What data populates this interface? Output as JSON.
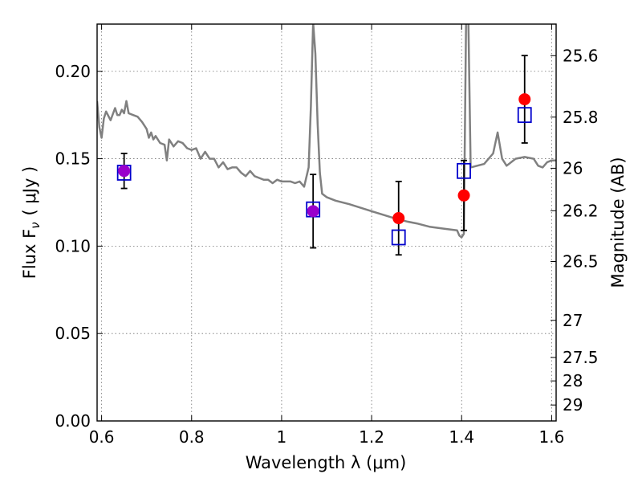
{
  "chart_data": {
    "type": "scatter",
    "xlabel": "Wavelength  λ (μm)",
    "ylabel": "Flux  F",
    "ylabel_sub": "ν",
    "ylabel_unit": "( μJy )",
    "y2label": "Magnitude (AB)",
    "xlim": [
      0.59,
      1.61
    ],
    "ylim": [
      0.0,
      0.227
    ],
    "x_ticks": [
      0.6,
      0.8,
      1.0,
      1.2,
      1.4,
      1.6
    ],
    "x_tick_labels": [
      "0.6",
      "0.8",
      "1",
      "1.2",
      "1.4",
      "1.6"
    ],
    "y_ticks": [
      0.0,
      0.05,
      0.1,
      0.15,
      0.2
    ],
    "y_tick_labels": [
      "0.00",
      "0.05",
      "0.10",
      "0.15",
      "0.20"
    ],
    "mag_ticks": [
      25.6,
      25.8,
      26,
      26.2,
      26.5,
      27,
      27.5,
      28,
      29
    ],
    "mag_tick_labels": [
      "25.6",
      "25.8",
      "26",
      "26.2",
      "26.5",
      "27",
      "27.5",
      "28",
      "29"
    ],
    "grid": true,
    "colors": {
      "observed": "#ff0000",
      "model": "#0000cc",
      "spectrum": "#808080",
      "overlap": "#9900cc"
    },
    "series": [
      {
        "kind": "spectrum",
        "x": [
          0.59,
          0.595,
          0.6,
          0.605,
          0.61,
          0.62,
          0.63,
          0.635,
          0.64,
          0.645,
          0.65,
          0.655,
          0.66,
          0.67,
          0.68,
          0.69,
          0.7,
          0.705,
          0.71,
          0.715,
          0.72,
          0.73,
          0.74,
          0.745,
          0.75,
          0.76,
          0.77,
          0.78,
          0.79,
          0.8,
          0.81,
          0.82,
          0.83,
          0.84,
          0.85,
          0.86,
          0.87,
          0.88,
          0.89,
          0.9,
          0.91,
          0.92,
          0.93,
          0.94,
          0.95,
          0.96,
          0.97,
          0.98,
          0.99,
          1.0,
          1.01,
          1.02,
          1.03,
          1.04,
          1.05,
          1.06,
          1.065,
          1.07,
          1.075,
          1.08,
          1.085,
          1.09,
          1.1,
          1.12,
          1.15,
          1.2,
          1.25,
          1.28,
          1.3,
          1.33,
          1.36,
          1.39,
          1.395,
          1.4,
          1.405,
          1.41,
          1.415,
          1.42,
          1.45,
          1.47,
          1.48,
          1.49,
          1.5,
          1.52,
          1.54,
          1.56,
          1.57,
          1.58,
          1.59,
          1.6,
          1.61
        ],
        "y": [
          0.183,
          0.168,
          0.162,
          0.173,
          0.177,
          0.172,
          0.179,
          0.175,
          0.175,
          0.178,
          0.176,
          0.183,
          0.176,
          0.175,
          0.174,
          0.171,
          0.167,
          0.162,
          0.165,
          0.161,
          0.163,
          0.159,
          0.158,
          0.149,
          0.161,
          0.157,
          0.16,
          0.159,
          0.156,
          0.155,
          0.156,
          0.15,
          0.154,
          0.15,
          0.15,
          0.145,
          0.148,
          0.144,
          0.145,
          0.145,
          0.142,
          0.14,
          0.143,
          0.14,
          0.139,
          0.138,
          0.138,
          0.136,
          0.138,
          0.137,
          0.137,
          0.137,
          0.136,
          0.137,
          0.134,
          0.145,
          0.18,
          0.228,
          0.21,
          0.17,
          0.142,
          0.13,
          0.128,
          0.126,
          0.124,
          0.12,
          0.116,
          0.114,
          0.113,
          0.111,
          0.11,
          0.109,
          0.106,
          0.105,
          0.107,
          0.23,
          0.23,
          0.145,
          0.147,
          0.153,
          0.165,
          0.15,
          0.146,
          0.15,
          0.151,
          0.15,
          0.146,
          0.145,
          0.148,
          0.149,
          0.149
        ]
      },
      {
        "name": "",
        "kind": "model",
        "x": [
          0.65,
          1.07,
          1.26,
          1.405,
          1.54
        ],
        "y": [
          0.142,
          0.121,
          0.105,
          0.143,
          0.175
        ]
      },
      {
        "name": "",
        "kind": "observed",
        "x": [
          0.65,
          1.07,
          1.26,
          1.405,
          1.54
        ],
        "y": [
          0.143,
          0.12,
          0.116,
          0.129,
          0.184
        ],
        "yerr": [
          0.01,
          0.021,
          0.021,
          0.02,
          0.025
        ]
      }
    ]
  }
}
